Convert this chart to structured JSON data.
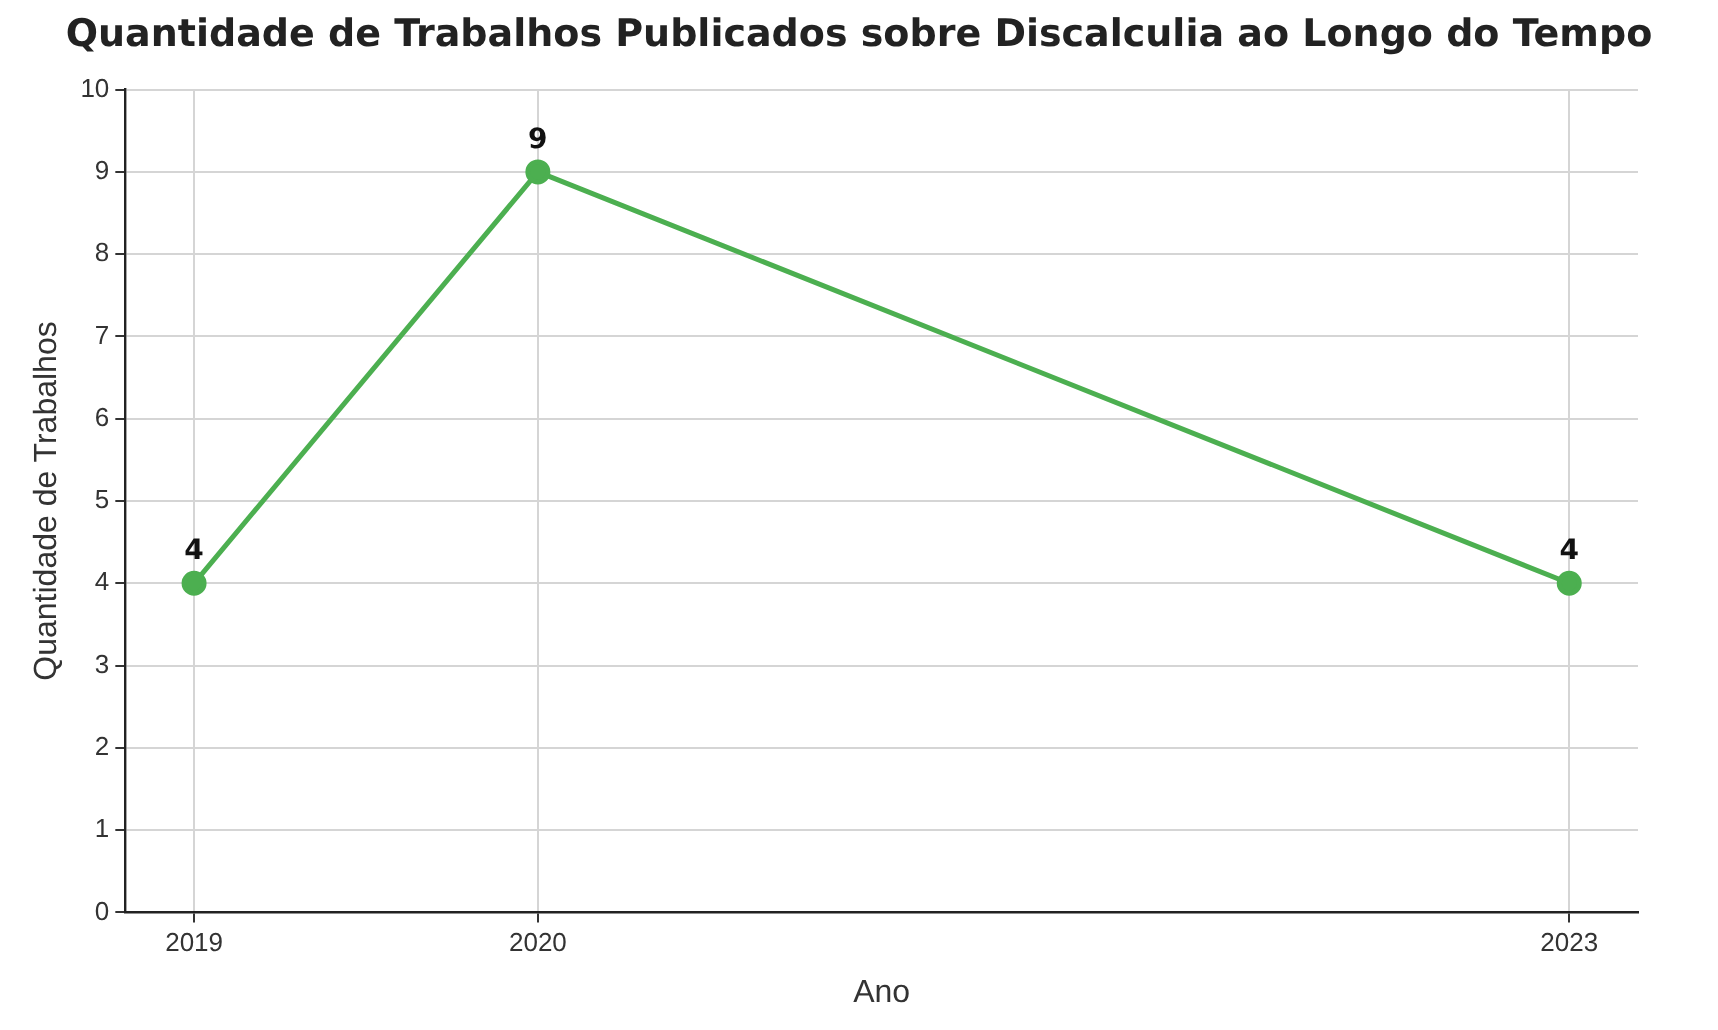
{
  "chart_data": {
    "type": "line",
    "title": "Quantidade de Trabalhos Publicados sobre Discalculia ao Longo do Tempo",
    "xlabel": "Ano",
    "ylabel": "Quantidade de Trabalhos",
    "x": [
      2019,
      2020,
      2023
    ],
    "series": [
      {
        "color": "#4caf50",
        "values": [
          4,
          9,
          4
        ]
      }
    ],
    "xlim": [
      2018.8,
      2023.2
    ],
    "xticks": [
      2019,
      2020,
      2023
    ],
    "ylim": [
      0,
      10
    ],
    "yticks": [
      0,
      1,
      2,
      3,
      4,
      5,
      6,
      7,
      8,
      9,
      10
    ],
    "grid": true,
    "marker": "circle",
    "line_style": "solid",
    "data_labels": true,
    "legend": false
  }
}
